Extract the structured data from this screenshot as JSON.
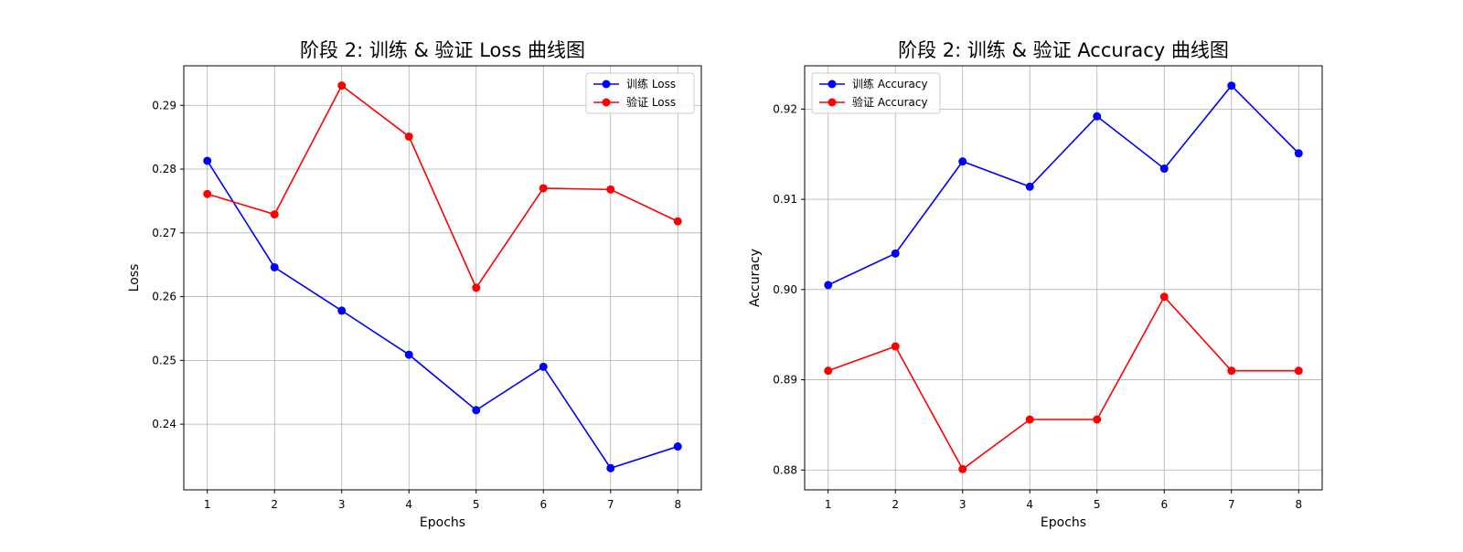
{
  "chart_data": [
    {
      "type": "line",
      "title": "阶段 2: 训练 & 验证 Loss 曲线图",
      "xlabel": "Epochs",
      "ylabel": "Loss",
      "x": [
        1,
        2,
        3,
        4,
        5,
        6,
        7,
        8
      ],
      "xlim": [
        0.65,
        8.35
      ],
      "ylim": [
        0.2297,
        0.2962
      ],
      "yticks": [
        0.24,
        0.25,
        0.26,
        0.27,
        0.28,
        0.29
      ],
      "ytick_labels": [
        "0.24",
        "0.25",
        "0.26",
        "0.27",
        "0.28",
        "0.29"
      ],
      "grid": true,
      "legend_position": "top-right",
      "series": [
        {
          "name": "训练 Loss",
          "color": "#0000ff",
          "values": [
            0.2813,
            0.2646,
            0.2578,
            0.2509,
            0.2422,
            0.249,
            0.2331,
            0.2365
          ]
        },
        {
          "name": "验证 Loss",
          "color": "#ff0000",
          "values": [
            0.2761,
            0.2729,
            0.2931,
            0.2851,
            0.2614,
            0.277,
            0.2768,
            0.2718
          ]
        }
      ]
    },
    {
      "type": "line",
      "title": "阶段 2: 训练 & 验证 Accuracy 曲线图",
      "xlabel": "Epochs",
      "ylabel": "Accuracy",
      "x": [
        1,
        2,
        3,
        4,
        5,
        6,
        7,
        8
      ],
      "xlim": [
        0.65,
        8.35
      ],
      "ylim": [
        0.8778,
        0.9248
      ],
      "yticks": [
        0.88,
        0.89,
        0.9,
        0.91,
        0.92
      ],
      "ytick_labels": [
        "0.88",
        "0.89",
        "0.90",
        "0.91",
        "0.92"
      ],
      "grid": true,
      "legend_position": "top-left",
      "series": [
        {
          "name": "训练 Accuracy",
          "color": "#0000ff",
          "values": [
            0.9005,
            0.904,
            0.9142,
            0.9114,
            0.9192,
            0.9134,
            0.9226,
            0.9151
          ]
        },
        {
          "name": "验证 Accuracy",
          "color": "#ff0000",
          "values": [
            0.891,
            0.8937,
            0.8801,
            0.8856,
            0.8856,
            0.8992,
            0.891,
            0.891
          ]
        }
      ]
    }
  ]
}
